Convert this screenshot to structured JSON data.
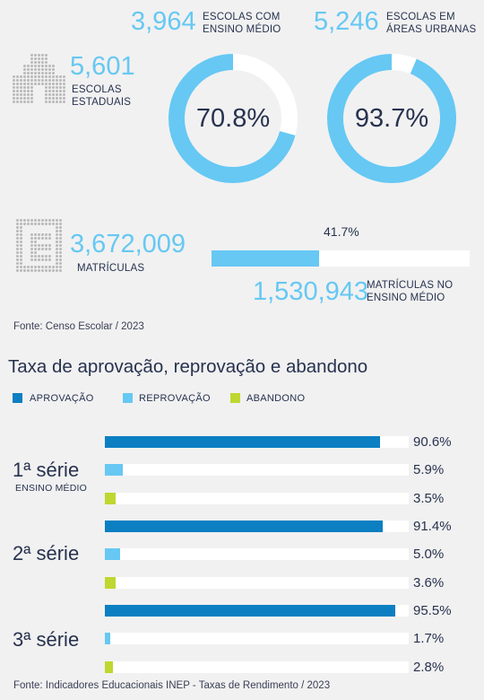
{
  "colors": {
    "dark_blue": "#0b7fc2",
    "light_blue": "#66c8f3",
    "green": "#bfd730",
    "track": "#ffffff",
    "navy": "#27324f"
  },
  "stats": {
    "ensino_medio": {
      "value": "3,964",
      "label": [
        "ESCOLAS COM",
        "ENSINO MÉDIO"
      ],
      "percent": "70.8%",
      "fraction": 0.708
    },
    "urbanas": {
      "value": "5,246",
      "label": [
        "ESCOLAS EM",
        "ÁREAS URBANAS"
      ],
      "percent": "93.7%",
      "fraction": 0.937
    },
    "estaduais": {
      "value": "5,601",
      "label": [
        "ESCOLAS",
        "ESTADUAIS"
      ],
      "icon": "school-building-icon"
    },
    "matriculas": {
      "value": "3,672,009",
      "label": "MATRÍCULAS",
      "icon": "enrollment-document-icon"
    },
    "matriculas_em": {
      "value": "1,530,943",
      "label": [
        "MATRÍCULAS NO",
        "ENSINO MÉDIO"
      ],
      "percent": "41.7%",
      "fraction": 0.417
    },
    "source": "Fonte: Censo Escolar / 2023"
  },
  "chart_data": {
    "type": "bar",
    "title": "Taxa de aprovação, reprovação e abandono",
    "xlim": [
      0,
      100
    ],
    "legend_placement": "top-left",
    "series": [
      {
        "name": "APROVAÇÃO",
        "color": "#0b7fc2"
      },
      {
        "name": "REPROVAÇÃO",
        "color": "#66c8f3"
      },
      {
        "name": "ABANDONO",
        "color": "#bfd730"
      }
    ],
    "groups": [
      {
        "label": "1ª série",
        "sublabel": "ENSINO MÉDIO",
        "values": [
          90.6,
          5.9,
          3.5
        ],
        "labels": [
          "90.6%",
          "5.9%",
          "3.5%"
        ]
      },
      {
        "label": "2ª série",
        "sublabel": "",
        "values": [
          91.4,
          5.0,
          3.6
        ],
        "labels": [
          "91.4%",
          "5.0%",
          "3.6%"
        ]
      },
      {
        "label": "3ª série",
        "sublabel": "",
        "values": [
          95.5,
          1.7,
          2.8
        ],
        "labels": [
          "95.5%",
          "1.7%",
          "2.8%"
        ]
      }
    ],
    "source": "Fonte: Indicadores Educacionais INEP - Taxas de Rendimento / 2023"
  }
}
